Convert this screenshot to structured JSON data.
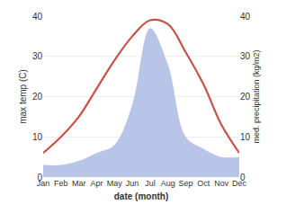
{
  "chart_data": {
    "type": "line",
    "xlabel": "date (month)",
    "ylabel": "max temp (C)",
    "y2label": "med. precipitation (kg/m2)",
    "categories": [
      "Jan",
      "Feb",
      "Mar",
      "Apr",
      "May",
      "Jun",
      "Jul",
      "Aug",
      "Sep",
      "Oct",
      "Nov",
      "Dec"
    ],
    "series": [
      {
        "type": "area",
        "axis": "y2",
        "color": "#b8c4e8",
        "values": [
          3,
          3,
          4,
          6,
          8,
          18,
          37,
          28,
          10,
          7,
          5,
          5
        ]
      },
      {
        "type": "line",
        "color": "#c8524a",
        "values": [
          6,
          10,
          15,
          22,
          29,
          35,
          39,
          38,
          31,
          23,
          13,
          6
        ]
      }
    ],
    "ylim": [
      0,
      40
    ],
    "yticks": [
      0,
      10,
      20,
      30,
      40
    ],
    "y2lim": [
      0,
      40
    ],
    "y2ticks": [
      0,
      10,
      20,
      30,
      40
    ],
    "grid": true
  }
}
